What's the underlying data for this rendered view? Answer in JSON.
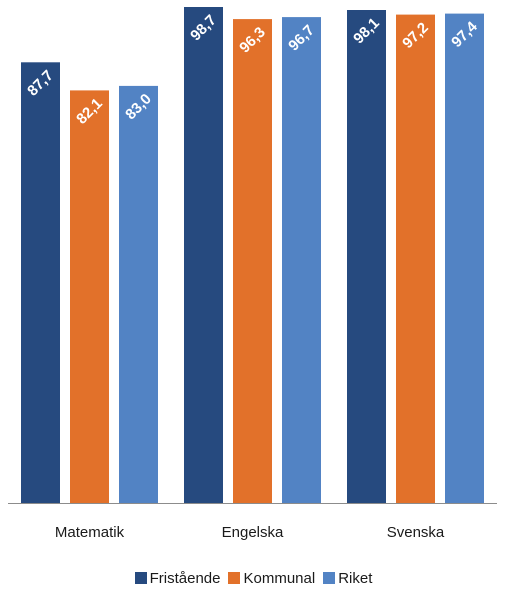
{
  "chart_data": {
    "type": "bar",
    "categories": [
      "Matematik",
      "Engelska",
      "Svenska"
    ],
    "series": [
      {
        "name": "Fristående",
        "color": "#264A7F",
        "values": [
          87.7,
          98.7,
          98.1
        ],
        "labels": [
          "87,7",
          "98,7",
          "98,1"
        ]
      },
      {
        "name": "Kommunal",
        "color": "#E2712A",
        "values": [
          82.1,
          96.3,
          97.2
        ],
        "labels": [
          "82,1",
          "96,3",
          "97,2"
        ]
      },
      {
        "name": "Riket",
        "color": "#5283C4",
        "values": [
          83.0,
          96.7,
          97.4
        ],
        "labels": [
          "83,0",
          "96,7",
          "97,4"
        ]
      }
    ],
    "ylim": [
      0,
      100
    ],
    "grid": false,
    "legend": "bottom",
    "title": "",
    "xlabel": "",
    "ylabel": ""
  }
}
